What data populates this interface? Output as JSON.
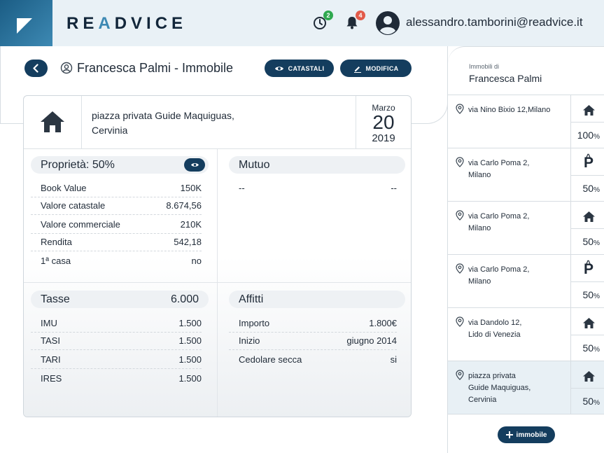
{
  "app": {
    "brand_pre": "RE",
    "brand_accent": "A",
    "brand_post": "DVICE"
  },
  "header": {
    "history_badge": "2",
    "notifications_badge": "4",
    "user_email": "alessandro.tamborini@readvice.it",
    "history_badge_color": "#2fa84f",
    "notifications_badge_color": "#e25b4a"
  },
  "page": {
    "title": "Francesca Palmi - Immobile",
    "catastali_label": "CATASTALI",
    "modifica_label": "MODIFICA"
  },
  "property": {
    "address_line1": "piazza privata Guide Maquiguas,",
    "address_line2": "Cervinia",
    "date_month": "Marzo",
    "date_day": "20",
    "date_year": "2019"
  },
  "proprieta": {
    "title": "Proprietà: 50%",
    "rows": [
      {
        "label": "Book Value",
        "value": "150K"
      },
      {
        "label": "Valore catastale",
        "value": "8.674,56"
      },
      {
        "label": "Valore commerciale",
        "value": "210K"
      },
      {
        "label": "Rendita",
        "value": "542,18"
      },
      {
        "label": "1ª casa",
        "value": "no"
      }
    ]
  },
  "mutuo": {
    "title": "Mutuo",
    "left": "--",
    "right": "--"
  },
  "tasse": {
    "title": "Tasse",
    "total": "6.000",
    "rows": [
      {
        "label": "IMU",
        "value": "1.500"
      },
      {
        "label": "TASI",
        "value": "1.500"
      },
      {
        "label": "TARI",
        "value": "1.500"
      },
      {
        "label": "IRES",
        "value": "1.500"
      }
    ]
  },
  "affitti": {
    "title": "Affitti",
    "rows": [
      {
        "label": "Importo",
        "value": "1.800€"
      },
      {
        "label": "Inizio",
        "value": "giugno 2014"
      },
      {
        "label": "Cedolare secca",
        "value": "si"
      }
    ]
  },
  "sidebar": {
    "small_label": "Immobili di",
    "owner": "Francesca Palmi",
    "items": [
      {
        "line1": "via Nino Bixio 12,Milano",
        "line2": "",
        "line3": "",
        "icon": "house-icon",
        "pct": "100",
        "unit": "%"
      },
      {
        "line1": "via Carlo Poma 2,",
        "line2": "Milano",
        "line3": "",
        "icon": "parking-icon",
        "pct": "50",
        "unit": "%"
      },
      {
        "line1": "via Carlo Poma 2,",
        "line2": "Milano",
        "line3": "",
        "icon": "house-icon",
        "pct": "50",
        "unit": "%"
      },
      {
        "line1": "via Carlo Poma 2,",
        "line2": "Milano",
        "line3": "",
        "icon": "parking-icon",
        "pct": "50",
        "unit": "%"
      },
      {
        "line1": "via Dandolo 12,",
        "line2": "Lido di Venezia",
        "line3": "",
        "icon": "house-icon",
        "pct": "50",
        "unit": "%"
      },
      {
        "line1": "piazza privata",
        "line2": "Guide Maquiguas,",
        "line3": "Cervinia",
        "icon": "house-icon",
        "pct": "50",
        "unit": "%"
      }
    ],
    "add_label": "immobile"
  }
}
